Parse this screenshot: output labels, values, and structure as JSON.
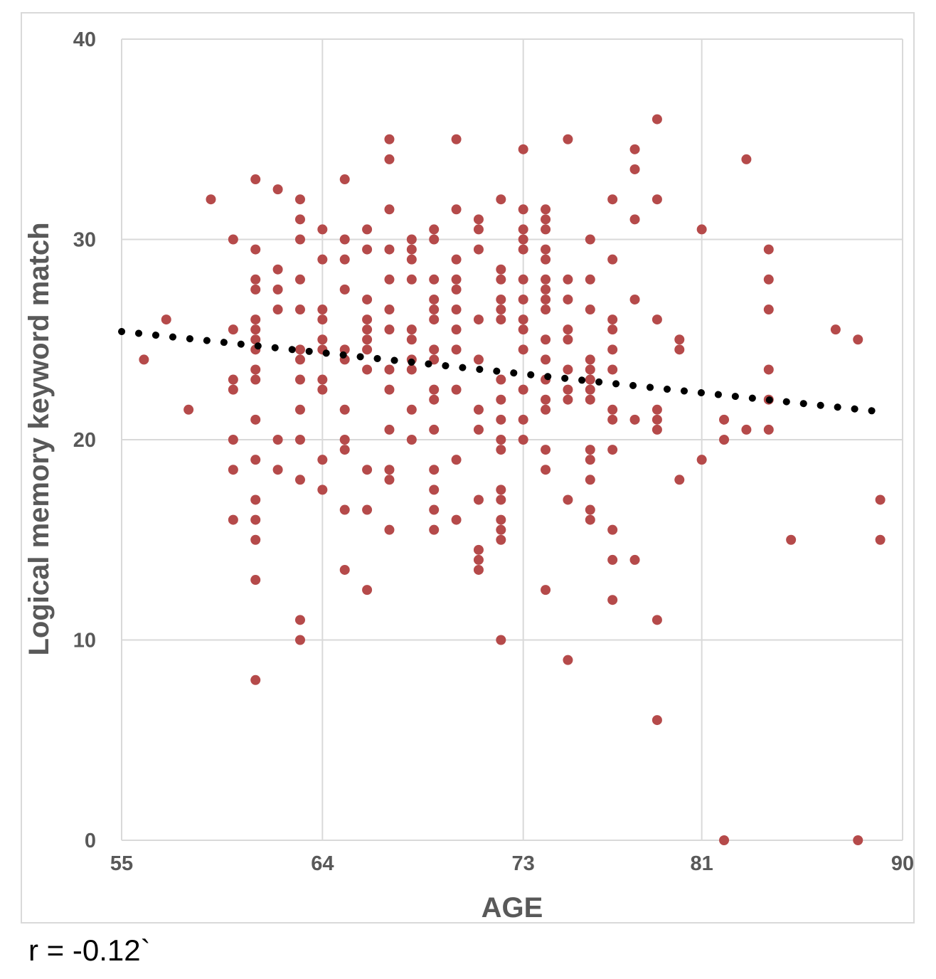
{
  "chart_data": {
    "type": "scatter",
    "title": "",
    "xlabel": "AGE",
    "ylabel": "Logical memory keyword match",
    "xlim": [
      55,
      90
    ],
    "ylim": [
      0,
      40
    ],
    "x_ticks": [
      "55",
      "64",
      "73",
      "81",
      "90"
    ],
    "y_ticks": [
      "0",
      "10",
      "20",
      "30",
      "40"
    ],
    "grid": true,
    "legend": "none",
    "point_color": "#b54a4a",
    "trendline": {
      "style": "dotted",
      "color": "#000000",
      "x": [
        55,
        89
      ],
      "y": [
        25.4,
        21.4
      ]
    },
    "annotation": "r = -0.12`",
    "points": [
      [
        56,
        24
      ],
      [
        57,
        26
      ],
      [
        58,
        21.5
      ],
      [
        59,
        32
      ],
      [
        60,
        30
      ],
      [
        60,
        25.5
      ],
      [
        60,
        23
      ],
      [
        60,
        22.5
      ],
      [
        60,
        20
      ],
      [
        60,
        18.5
      ],
      [
        60,
        16
      ],
      [
        61,
        33
      ],
      [
        61,
        29.5
      ],
      [
        61,
        28
      ],
      [
        61,
        27.5
      ],
      [
        61,
        26
      ],
      [
        61,
        25.5
      ],
      [
        61,
        25
      ],
      [
        61,
        24.5
      ],
      [
        61,
        23.5
      ],
      [
        61,
        23
      ],
      [
        61,
        21
      ],
      [
        61,
        19
      ],
      [
        61,
        17
      ],
      [
        61,
        16
      ],
      [
        61,
        15
      ],
      [
        61,
        13
      ],
      [
        61,
        8
      ],
      [
        62,
        32.5
      ],
      [
        62,
        28.5
      ],
      [
        62,
        27.5
      ],
      [
        62,
        26.5
      ],
      [
        62,
        20
      ],
      [
        62,
        18.5
      ],
      [
        63,
        32
      ],
      [
        63,
        31
      ],
      [
        63,
        30
      ],
      [
        63,
        28
      ],
      [
        63,
        26.5
      ],
      [
        63,
        24.5
      ],
      [
        63,
        24
      ],
      [
        63,
        23
      ],
      [
        63,
        21.5
      ],
      [
        63,
        20
      ],
      [
        63,
        18
      ],
      [
        63,
        11
      ],
      [
        63,
        10
      ],
      [
        64,
        30.5
      ],
      [
        64,
        29
      ],
      [
        64,
        26.5
      ],
      [
        64,
        26
      ],
      [
        64,
        25
      ],
      [
        64,
        24.5
      ],
      [
        64,
        23
      ],
      [
        64,
        22.5
      ],
      [
        64,
        19
      ],
      [
        64,
        17.5
      ],
      [
        65,
        33
      ],
      [
        65,
        30
      ],
      [
        65,
        29
      ],
      [
        65,
        27.5
      ],
      [
        65,
        24.5
      ],
      [
        65,
        24
      ],
      [
        65,
        21.5
      ],
      [
        65,
        20
      ],
      [
        65,
        19.5
      ],
      [
        65,
        16.5
      ],
      [
        65,
        13.5
      ],
      [
        66,
        30.5
      ],
      [
        66,
        29.5
      ],
      [
        66,
        27
      ],
      [
        66,
        26
      ],
      [
        66,
        25.5
      ],
      [
        66,
        25
      ],
      [
        66,
        24.5
      ],
      [
        66,
        23.5
      ],
      [
        66,
        18.5
      ],
      [
        66,
        16.5
      ],
      [
        66,
        12.5
      ],
      [
        67,
        35
      ],
      [
        67,
        34
      ],
      [
        67,
        31.5
      ],
      [
        67,
        29.5
      ],
      [
        67,
        28
      ],
      [
        67,
        26.5
      ],
      [
        67,
        25.5
      ],
      [
        67,
        23.5
      ],
      [
        67,
        22.5
      ],
      [
        67,
        20.5
      ],
      [
        67,
        18.5
      ],
      [
        67,
        18
      ],
      [
        67,
        15.5
      ],
      [
        68,
        30
      ],
      [
        68,
        29.5
      ],
      [
        68,
        29
      ],
      [
        68,
        28
      ],
      [
        68,
        25.5
      ],
      [
        68,
        25
      ],
      [
        68,
        24
      ],
      [
        68,
        23.5
      ],
      [
        68,
        21.5
      ],
      [
        68,
        20
      ],
      [
        69,
        30.5
      ],
      [
        69,
        30
      ],
      [
        69,
        28
      ],
      [
        69,
        27
      ],
      [
        69,
        26.5
      ],
      [
        69,
        26
      ],
      [
        69,
        24.5
      ],
      [
        69,
        24
      ],
      [
        69,
        22.5
      ],
      [
        69,
        22
      ],
      [
        69,
        20.5
      ],
      [
        69,
        18.5
      ],
      [
        69,
        17.5
      ],
      [
        69,
        16.5
      ],
      [
        69,
        15.5
      ],
      [
        70,
        35
      ],
      [
        70,
        31.5
      ],
      [
        70,
        29
      ],
      [
        70,
        28
      ],
      [
        70,
        27.5
      ],
      [
        70,
        26.5
      ],
      [
        70,
        25.5
      ],
      [
        70,
        24.5
      ],
      [
        70,
        22.5
      ],
      [
        70,
        19
      ],
      [
        70,
        16
      ],
      [
        71,
        31
      ],
      [
        71,
        30.5
      ],
      [
        71,
        29.5
      ],
      [
        71,
        26
      ],
      [
        71,
        24
      ],
      [
        71,
        21.5
      ],
      [
        71,
        20.5
      ],
      [
        71,
        17
      ],
      [
        71,
        14.5
      ],
      [
        71,
        14
      ],
      [
        71,
        13.5
      ],
      [
        72,
        32
      ],
      [
        72,
        28.5
      ],
      [
        72,
        28
      ],
      [
        72,
        27
      ],
      [
        72,
        26.5
      ],
      [
        72,
        26
      ],
      [
        72,
        23
      ],
      [
        72,
        22
      ],
      [
        72,
        21
      ],
      [
        72,
        20
      ],
      [
        72,
        19.5
      ],
      [
        72,
        17.5
      ],
      [
        72,
        17
      ],
      [
        72,
        16
      ],
      [
        72,
        15.5
      ],
      [
        72,
        15
      ],
      [
        72,
        10
      ],
      [
        73,
        34.5
      ],
      [
        73,
        31.5
      ],
      [
        73,
        30.5
      ],
      [
        73,
        30
      ],
      [
        73,
        29.5
      ],
      [
        73,
        28
      ],
      [
        73,
        27
      ],
      [
        73,
        26
      ],
      [
        73,
        25.5
      ],
      [
        73,
        24.5
      ],
      [
        73,
        22.5
      ],
      [
        73,
        21
      ],
      [
        73,
        20
      ],
      [
        74,
        31.5
      ],
      [
        74,
        31
      ],
      [
        74,
        30.5
      ],
      [
        74,
        29.5
      ],
      [
        74,
        29
      ],
      [
        74,
        28
      ],
      [
        74,
        27.5
      ],
      [
        74,
        27
      ],
      [
        74,
        26.5
      ],
      [
        74,
        25
      ],
      [
        74,
        24
      ],
      [
        74,
        23
      ],
      [
        74,
        22
      ],
      [
        74,
        21.5
      ],
      [
        74,
        19.5
      ],
      [
        74,
        18.5
      ],
      [
        74,
        12.5
      ],
      [
        75,
        35
      ],
      [
        75,
        28
      ],
      [
        75,
        27
      ],
      [
        75,
        25.5
      ],
      [
        75,
        25
      ],
      [
        75,
        23.5
      ],
      [
        75,
        22.5
      ],
      [
        75,
        22
      ],
      [
        75,
        17
      ],
      [
        75,
        9
      ],
      [
        76,
        30
      ],
      [
        76,
        28
      ],
      [
        76,
        26.5
      ],
      [
        76,
        24
      ],
      [
        76,
        23.5
      ],
      [
        76,
        23
      ],
      [
        76,
        22.5
      ],
      [
        76,
        22
      ],
      [
        76,
        19.5
      ],
      [
        76,
        19
      ],
      [
        76,
        18
      ],
      [
        76,
        16.5
      ],
      [
        76,
        16
      ],
      [
        77,
        32
      ],
      [
        77,
        29
      ],
      [
        77,
        26
      ],
      [
        77,
        25.5
      ],
      [
        77,
        24.5
      ],
      [
        77,
        23.5
      ],
      [
        77,
        21.5
      ],
      [
        77,
        21
      ],
      [
        77,
        19.5
      ],
      [
        77,
        15.5
      ],
      [
        77,
        14
      ],
      [
        77,
        12
      ],
      [
        78,
        34.5
      ],
      [
        78,
        33.5
      ],
      [
        78,
        31
      ],
      [
        78,
        27
      ],
      [
        78,
        21
      ],
      [
        78,
        14
      ],
      [
        79,
        36
      ],
      [
        79,
        32
      ],
      [
        79,
        26
      ],
      [
        79,
        21.5
      ],
      [
        79,
        21
      ],
      [
        79,
        20.5
      ],
      [
        79,
        11
      ],
      [
        79,
        6
      ],
      [
        80,
        25
      ],
      [
        80,
        24.5
      ],
      [
        80,
        18
      ],
      [
        81,
        30.5
      ],
      [
        81,
        19
      ],
      [
        82,
        21
      ],
      [
        82,
        20
      ],
      [
        82,
        0
      ],
      [
        83,
        34
      ],
      [
        83,
        20.5
      ],
      [
        84,
        29.5
      ],
      [
        84,
        28
      ],
      [
        84,
        26.5
      ],
      [
        84,
        23.5
      ],
      [
        84,
        22
      ],
      [
        84,
        20.5
      ],
      [
        85,
        15
      ],
      [
        87,
        25.5
      ],
      [
        88,
        25
      ],
      [
        88,
        0
      ],
      [
        89,
        17
      ],
      [
        89,
        15
      ]
    ]
  }
}
